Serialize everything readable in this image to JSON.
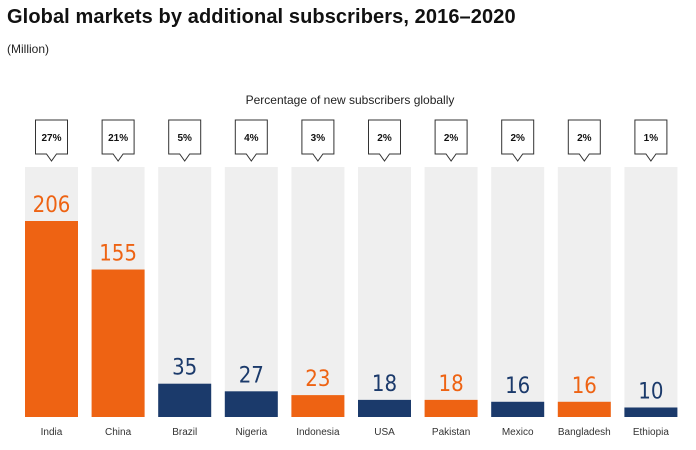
{
  "title": "Global markets by additional subscribers, 2016–2020",
  "subtitle": "(Million)",
  "chart_data": {
    "type": "bar",
    "title": "Global markets by additional subscribers, 2016–2020",
    "unit": "(Million)",
    "caption": "Percentage of new subscribers globally",
    "categories": [
      "India",
      "China",
      "Brazil",
      "Nigeria",
      "Indonesia",
      "USA",
      "Pakistan",
      "Mexico",
      "Bangladesh",
      "Ethiopia"
    ],
    "values": [
      206,
      155,
      35,
      27,
      23,
      18,
      18,
      16,
      16,
      10
    ],
    "percentages": [
      "27%",
      "21%",
      "5%",
      "4%",
      "3%",
      "2%",
      "2%",
      "2%",
      "2%",
      "1%"
    ],
    "colors": [
      "#ee6313",
      "#ee6313",
      "#1b3a6b",
      "#1b3a6b",
      "#ee6313",
      "#1b3a6b",
      "#ee6313",
      "#1b3a6b",
      "#ee6313",
      "#1b3a6b"
    ],
    "track_color": "#efefef",
    "ylim": [
      0,
      206
    ]
  }
}
